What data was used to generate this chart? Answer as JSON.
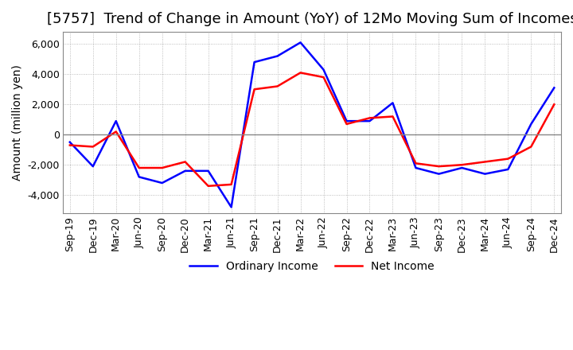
{
  "title": "[5757]  Trend of Change in Amount (YoY) of 12Mo Moving Sum of Incomes",
  "ylabel": "Amount (million yen)",
  "ylim": [
    -5200,
    6800
  ],
  "yticks": [
    -4000,
    -2000,
    0,
    2000,
    4000,
    6000
  ],
  "x_labels": [
    "Sep-19",
    "Dec-19",
    "Mar-20",
    "Jun-20",
    "Sep-20",
    "Dec-20",
    "Mar-21",
    "Jun-21",
    "Sep-21",
    "Dec-21",
    "Mar-22",
    "Jun-22",
    "Sep-22",
    "Dec-22",
    "Mar-23",
    "Jun-23",
    "Sep-23",
    "Dec-23",
    "Mar-24",
    "Jun-24",
    "Sep-24",
    "Dec-24"
  ],
  "ordinary_income": [
    -500,
    -2100,
    900,
    -2800,
    -3200,
    -2400,
    -2400,
    -4800,
    4800,
    5200,
    6100,
    4300,
    900,
    900,
    2100,
    -2200,
    -2600,
    -2200,
    -2600,
    -2300,
    700,
    3100
  ],
  "net_income": [
    -700,
    -800,
    200,
    -2200,
    -2200,
    -1800,
    -3400,
    -3300,
    3000,
    3200,
    4100,
    3800,
    700,
    1100,
    1200,
    -1900,
    -2100,
    -2000,
    -1800,
    -1600,
    -800,
    2000
  ],
  "ordinary_color": "#0000FF",
  "net_color": "#FF0000",
  "background_color": "#FFFFFF",
  "grid_color": "#AAAAAA",
  "zero_line_color": "#888888",
  "title_fontsize": 13,
  "axis_fontsize": 10,
  "tick_fontsize": 9
}
